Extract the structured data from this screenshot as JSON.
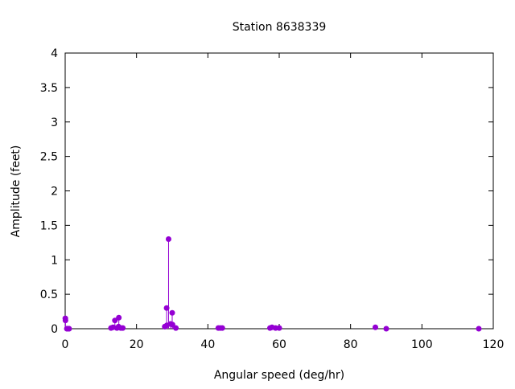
{
  "chart_data": {
    "type": "scatter",
    "style": "impulses with points",
    "title": "Station 8638339",
    "xlabel": "Angular speed (deg/hr)",
    "ylabel": "Amplitude (feet)",
    "xlim": [
      0,
      120
    ],
    "ylim": [
      0,
      4
    ],
    "xticks": [
      "0",
      "20",
      "40",
      "60",
      "80",
      "100",
      "120"
    ],
    "yticks": [
      "0",
      "0.5",
      "1",
      "1.5",
      "2",
      "2.5",
      "3",
      "3.5",
      "4"
    ],
    "grid": false,
    "color": "#9400d3",
    "points": [
      {
        "x": 0.04,
        "y": 0.15
      },
      {
        "x": 0.08,
        "y": 0.12
      },
      {
        "x": 0.47,
        "y": 0.0
      },
      {
        "x": 0.54,
        "y": 0.0
      },
      {
        "x": 1.02,
        "y": 0.0
      },
      {
        "x": 1.1,
        "y": 0.0
      },
      {
        "x": 12.85,
        "y": 0.01
      },
      {
        "x": 13.4,
        "y": 0.02
      },
      {
        "x": 13.94,
        "y": 0.12
      },
      {
        "x": 14.5,
        "y": 0.01
      },
      {
        "x": 14.96,
        "y": 0.03
      },
      {
        "x": 15.04,
        "y": 0.16
      },
      {
        "x": 15.59,
        "y": 0.01
      },
      {
        "x": 16.14,
        "y": 0.01
      },
      {
        "x": 27.9,
        "y": 0.03
      },
      {
        "x": 27.97,
        "y": 0.03
      },
      {
        "x": 28.44,
        "y": 0.3
      },
      {
        "x": 28.51,
        "y": 0.05
      },
      {
        "x": 28.98,
        "y": 1.3
      },
      {
        "x": 29.53,
        "y": 0.07
      },
      {
        "x": 30.0,
        "y": 0.23
      },
      {
        "x": 30.08,
        "y": 0.06
      },
      {
        "x": 31.02,
        "y": 0.01
      },
      {
        "x": 42.93,
        "y": 0.01
      },
      {
        "x": 43.48,
        "y": 0.01
      },
      {
        "x": 44.03,
        "y": 0.01
      },
      {
        "x": 57.42,
        "y": 0.01
      },
      {
        "x": 57.97,
        "y": 0.02
      },
      {
        "x": 58.98,
        "y": 0.01
      },
      {
        "x": 60.0,
        "y": 0.01
      },
      {
        "x": 86.95,
        "y": 0.02
      },
      {
        "x": 90.0,
        "y": 0.0
      },
      {
        "x": 115.94,
        "y": 0.0
      }
    ]
  }
}
